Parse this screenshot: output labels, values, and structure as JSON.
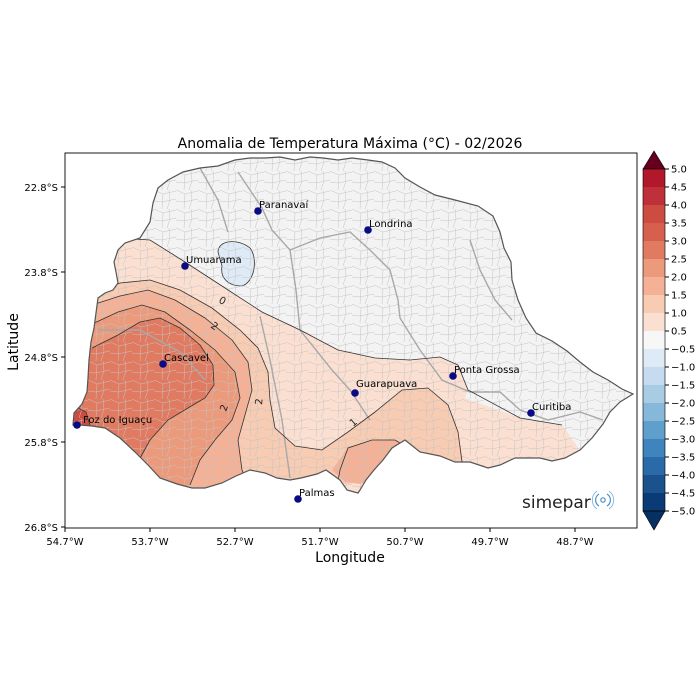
{
  "title": "Anomalia de Temperatura Máxima (°C) - 02/2026",
  "xlabel": "Longitude",
  "ylabel": "Latitude",
  "x_ticks": [
    "54.7°W",
    "53.7°W",
    "52.7°W",
    "51.7°W",
    "50.7°W",
    "49.7°W",
    "48.7°W"
  ],
  "y_ticks": [
    "22.8°S",
    "23.8°S",
    "24.8°S",
    "25.8°S",
    "26.8°S"
  ],
  "colorbar": {
    "labels": [
      "5.0",
      "4.5",
      "4.0",
      "3.5",
      "3.0",
      "2.5",
      "2.0",
      "1.5",
      "1.0",
      "0.5",
      "−0.5",
      "−1.0",
      "−1.5",
      "−2.0",
      "−2.5",
      "−3.0",
      "−3.5",
      "−4.0",
      "−4.5",
      "−5.0"
    ],
    "colors": [
      "#b2182b",
      "#c0303a",
      "#cc4c42",
      "#d6604d",
      "#e07b61",
      "#eb9a7c",
      "#f4b196",
      "#f8cbb3",
      "#fbe0d2",
      "#f7f7f7",
      "#deebf7",
      "#c6dbef",
      "#a8cce3",
      "#86b8d9",
      "#5f9fcb",
      "#3f84bc",
      "#2a6aa8",
      "#1b528e",
      "#0b3b75"
    ],
    "over_color": "#67001f",
    "under_color": "#053061"
  },
  "cities": [
    {
      "name": "Paranavaí"
    },
    {
      "name": "Londrina"
    },
    {
      "name": "Umuarama"
    },
    {
      "name": "Cascavel"
    },
    {
      "name": "Ponta Grossa"
    },
    {
      "name": "Guarapuava"
    },
    {
      "name": "Curitiba"
    },
    {
      "name": "Foz do Iguaçu"
    },
    {
      "name": "Palmas"
    }
  ],
  "contour_labels": [
    "0",
    "2",
    "2",
    "2",
    "1"
  ],
  "logo": "simepar"
}
